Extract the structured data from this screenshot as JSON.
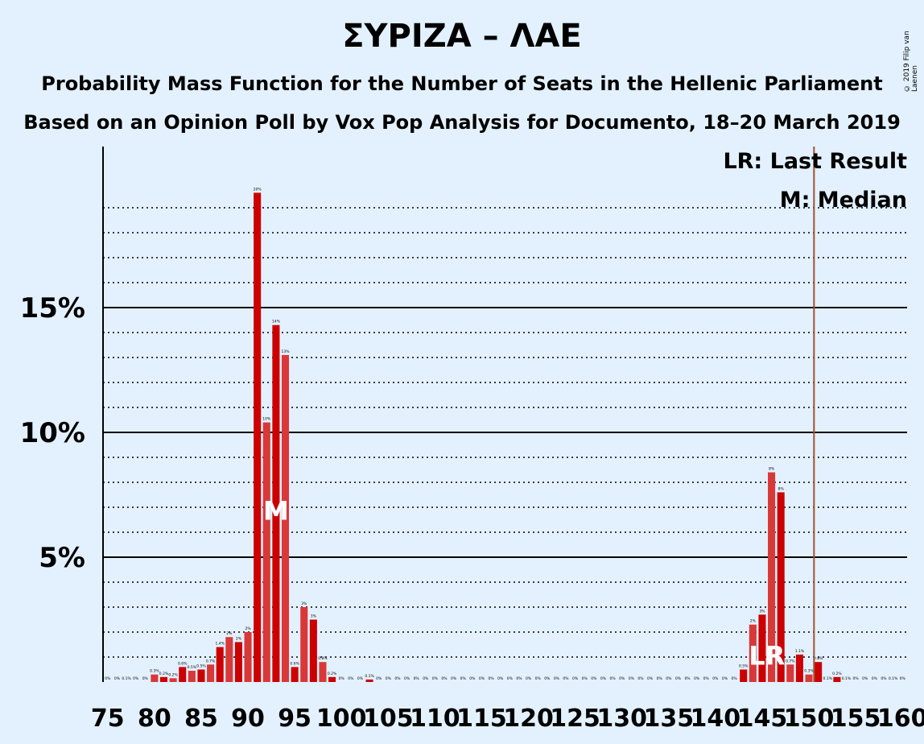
{
  "title": "ΣΥΡΙΖΑ – ΛΑΕ",
  "subtitle1": "Probability Mass Function for the Number of Seats in the Hellenic Parliament",
  "subtitle2": "Based on an Opinion Poll by Vox Pop Analysis for Documento, 18–20 March 2019",
  "copyright": "© 2019 Filip van Laenen",
  "legend": {
    "lr": "LR: Last Result",
    "m": "M: Median"
  },
  "markers": {
    "median_label": "M",
    "last_result_label": "LR"
  },
  "colors": {
    "bar_dark": "#cc0000",
    "bar_light": "#d93838",
    "last_result_line": "#a0522d",
    "background": "#e3f1fe"
  },
  "chart_data": {
    "type": "bar",
    "xlabel": "",
    "ylabel": "",
    "xlim": [
      75,
      160
    ],
    "ylim": [
      0,
      21.5
    ],
    "x_ticks": [
      75,
      80,
      85,
      90,
      95,
      100,
      105,
      110,
      115,
      120,
      125,
      130,
      135,
      140,
      145,
      150,
      155,
      160
    ],
    "y_ticks": [
      {
        "value": 5,
        "label": "5%"
      },
      {
        "value": 10,
        "label": "10%"
      },
      {
        "value": 15,
        "label": "15%"
      }
    ],
    "median": 93,
    "last_result": 151,
    "bars": [
      {
        "x": 75,
        "v": 0,
        "label": "0%"
      },
      {
        "x": 76,
        "v": 0,
        "label": "0%"
      },
      {
        "x": 77,
        "v": 0,
        "label": "0.1%"
      },
      {
        "x": 78,
        "v": 0,
        "label": "0%"
      },
      {
        "x": 79,
        "v": 0,
        "label": "0%"
      },
      {
        "x": 80,
        "v": 0.3,
        "label": "0.3%"
      },
      {
        "x": 81,
        "v": 0.2,
        "label": "0.2%"
      },
      {
        "x": 82,
        "v": 0.15,
        "label": "0.2%"
      },
      {
        "x": 83,
        "v": 0.6,
        "label": "0.6%"
      },
      {
        "x": 84,
        "v": 0.45,
        "label": "0.5%"
      },
      {
        "x": 85,
        "v": 0.5,
        "label": "0.5%"
      },
      {
        "x": 86,
        "v": 0.7,
        "label": "0.7%"
      },
      {
        "x": 87,
        "v": 1.4,
        "label": "1.4%"
      },
      {
        "x": 88,
        "v": 1.8,
        "label": "2%"
      },
      {
        "x": 89,
        "v": 1.6,
        "label": "2%"
      },
      {
        "x": 90,
        "v": 2.0,
        "label": "2%"
      },
      {
        "x": 91,
        "v": 19.6,
        "label": "20%"
      },
      {
        "x": 92,
        "v": 10.4,
        "label": "10%"
      },
      {
        "x": 93,
        "v": 14.3,
        "label": "14%"
      },
      {
        "x": 94,
        "v": 13.1,
        "label": "13%"
      },
      {
        "x": 95,
        "v": 0.6,
        "label": "0.6%"
      },
      {
        "x": 96,
        "v": 3.0,
        "label": "3%"
      },
      {
        "x": 97,
        "v": 2.5,
        "label": "3%"
      },
      {
        "x": 98,
        "v": 0.8,
        "label": "0.8%"
      },
      {
        "x": 99,
        "v": 0.2,
        "label": "0.2%"
      },
      {
        "x": 100,
        "v": 0,
        "label": "0%"
      },
      {
        "x": 101,
        "v": 0,
        "label": "0%"
      },
      {
        "x": 102,
        "v": 0,
        "label": "0%"
      },
      {
        "x": 103,
        "v": 0.1,
        "label": "0.1%"
      },
      {
        "x": 104,
        "v": 0,
        "label": "0%"
      },
      {
        "x": 105,
        "v": 0,
        "label": "0%"
      },
      {
        "x": 106,
        "v": 0,
        "label": "0%"
      },
      {
        "x": 107,
        "v": 0,
        "label": "0%"
      },
      {
        "x": 108,
        "v": 0,
        "label": "0%"
      },
      {
        "x": 109,
        "v": 0,
        "label": "0%"
      },
      {
        "x": 110,
        "v": 0,
        "label": "0%"
      },
      {
        "x": 111,
        "v": 0,
        "label": "0%"
      },
      {
        "x": 112,
        "v": 0,
        "label": "0%"
      },
      {
        "x": 113,
        "v": 0,
        "label": "0%"
      },
      {
        "x": 114,
        "v": 0,
        "label": "0%"
      },
      {
        "x": 115,
        "v": 0,
        "label": "0%"
      },
      {
        "x": 116,
        "v": 0,
        "label": "0%"
      },
      {
        "x": 117,
        "v": 0,
        "label": "0%"
      },
      {
        "x": 118,
        "v": 0,
        "label": "0%"
      },
      {
        "x": 119,
        "v": 0,
        "label": "0%"
      },
      {
        "x": 120,
        "v": 0,
        "label": "0%"
      },
      {
        "x": 121,
        "v": 0,
        "label": "0%"
      },
      {
        "x": 122,
        "v": 0,
        "label": "0%"
      },
      {
        "x": 123,
        "v": 0,
        "label": "0%"
      },
      {
        "x": 124,
        "v": 0,
        "label": "0%"
      },
      {
        "x": 125,
        "v": 0,
        "label": "0%"
      },
      {
        "x": 126,
        "v": 0,
        "label": "0%"
      },
      {
        "x": 127,
        "v": 0,
        "label": "0%"
      },
      {
        "x": 128,
        "v": 0,
        "label": "0%"
      },
      {
        "x": 129,
        "v": 0,
        "label": "0%"
      },
      {
        "x": 130,
        "v": 0,
        "label": "0%"
      },
      {
        "x": 131,
        "v": 0,
        "label": "0%"
      },
      {
        "x": 132,
        "v": 0,
        "label": "0%"
      },
      {
        "x": 133,
        "v": 0,
        "label": "0%"
      },
      {
        "x": 134,
        "v": 0,
        "label": "0%"
      },
      {
        "x": 135,
        "v": 0,
        "label": "0%"
      },
      {
        "x": 136,
        "v": 0,
        "label": "0%"
      },
      {
        "x": 137,
        "v": 0,
        "label": "0%"
      },
      {
        "x": 138,
        "v": 0,
        "label": "0%"
      },
      {
        "x": 139,
        "v": 0,
        "label": "0%"
      },
      {
        "x": 140,
        "v": 0,
        "label": "0%"
      },
      {
        "x": 141,
        "v": 0,
        "label": "0%"
      },
      {
        "x": 142,
        "v": 0,
        "label": "0%"
      },
      {
        "x": 143,
        "v": 0.5,
        "label": "0.5%"
      },
      {
        "x": 144,
        "v": 2.3,
        "label": "2%"
      },
      {
        "x": 145,
        "v": 2.7,
        "label": "3%"
      },
      {
        "x": 146,
        "v": 8.4,
        "label": "8%"
      },
      {
        "x": 147,
        "v": 7.6,
        "label": "8%"
      },
      {
        "x": 148,
        "v": 0.7,
        "label": "0.7%"
      },
      {
        "x": 149,
        "v": 1.1,
        "label": "1.1%"
      },
      {
        "x": 150,
        "v": 0.3,
        "label": "0.3%"
      },
      {
        "x": 151,
        "v": 0.8,
        "label": "0.8%"
      },
      {
        "x": 152,
        "v": 0,
        "label": "0.1%"
      },
      {
        "x": 153,
        "v": 0.2,
        "label": "0.2%"
      },
      {
        "x": 154,
        "v": 0,
        "label": "0.1%"
      },
      {
        "x": 155,
        "v": 0,
        "label": "0%"
      },
      {
        "x": 156,
        "v": 0,
        "label": "0%"
      },
      {
        "x": 157,
        "v": 0,
        "label": "0%"
      },
      {
        "x": 158,
        "v": 0,
        "label": "0%"
      },
      {
        "x": 159,
        "v": 0,
        "label": "0.1%"
      },
      {
        "x": 160,
        "v": 0,
        "label": "0%"
      }
    ]
  }
}
